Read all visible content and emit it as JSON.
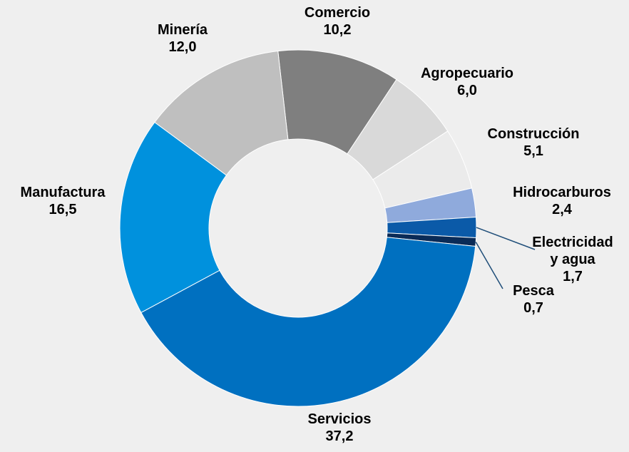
{
  "chart_data": {
    "type": "donut",
    "categories": [
      "Comercio",
      "Agropecuario",
      "Construcción",
      "Hidrocarburos",
      "Electricidad y agua",
      "Pesca",
      "Servicios",
      "Manufactura",
      "Minería"
    ],
    "values": [
      10.2,
      6.0,
      5.1,
      2.4,
      1.7,
      0.7,
      37.2,
      16.5,
      12.0
    ],
    "value_labels": [
      "10,2",
      "6,0",
      "5,1",
      "2,4",
      "1,7",
      "0,7",
      "37,2",
      "16,5",
      "12,0"
    ],
    "colors": [
      "#7f7f7f",
      "#d9d9d9",
      "#ebebeb",
      "#8faadc",
      "#0b5aa8",
      "#0a2b57",
      "#0070c0",
      "#0091dd",
      "#bfbfbf"
    ]
  }
}
